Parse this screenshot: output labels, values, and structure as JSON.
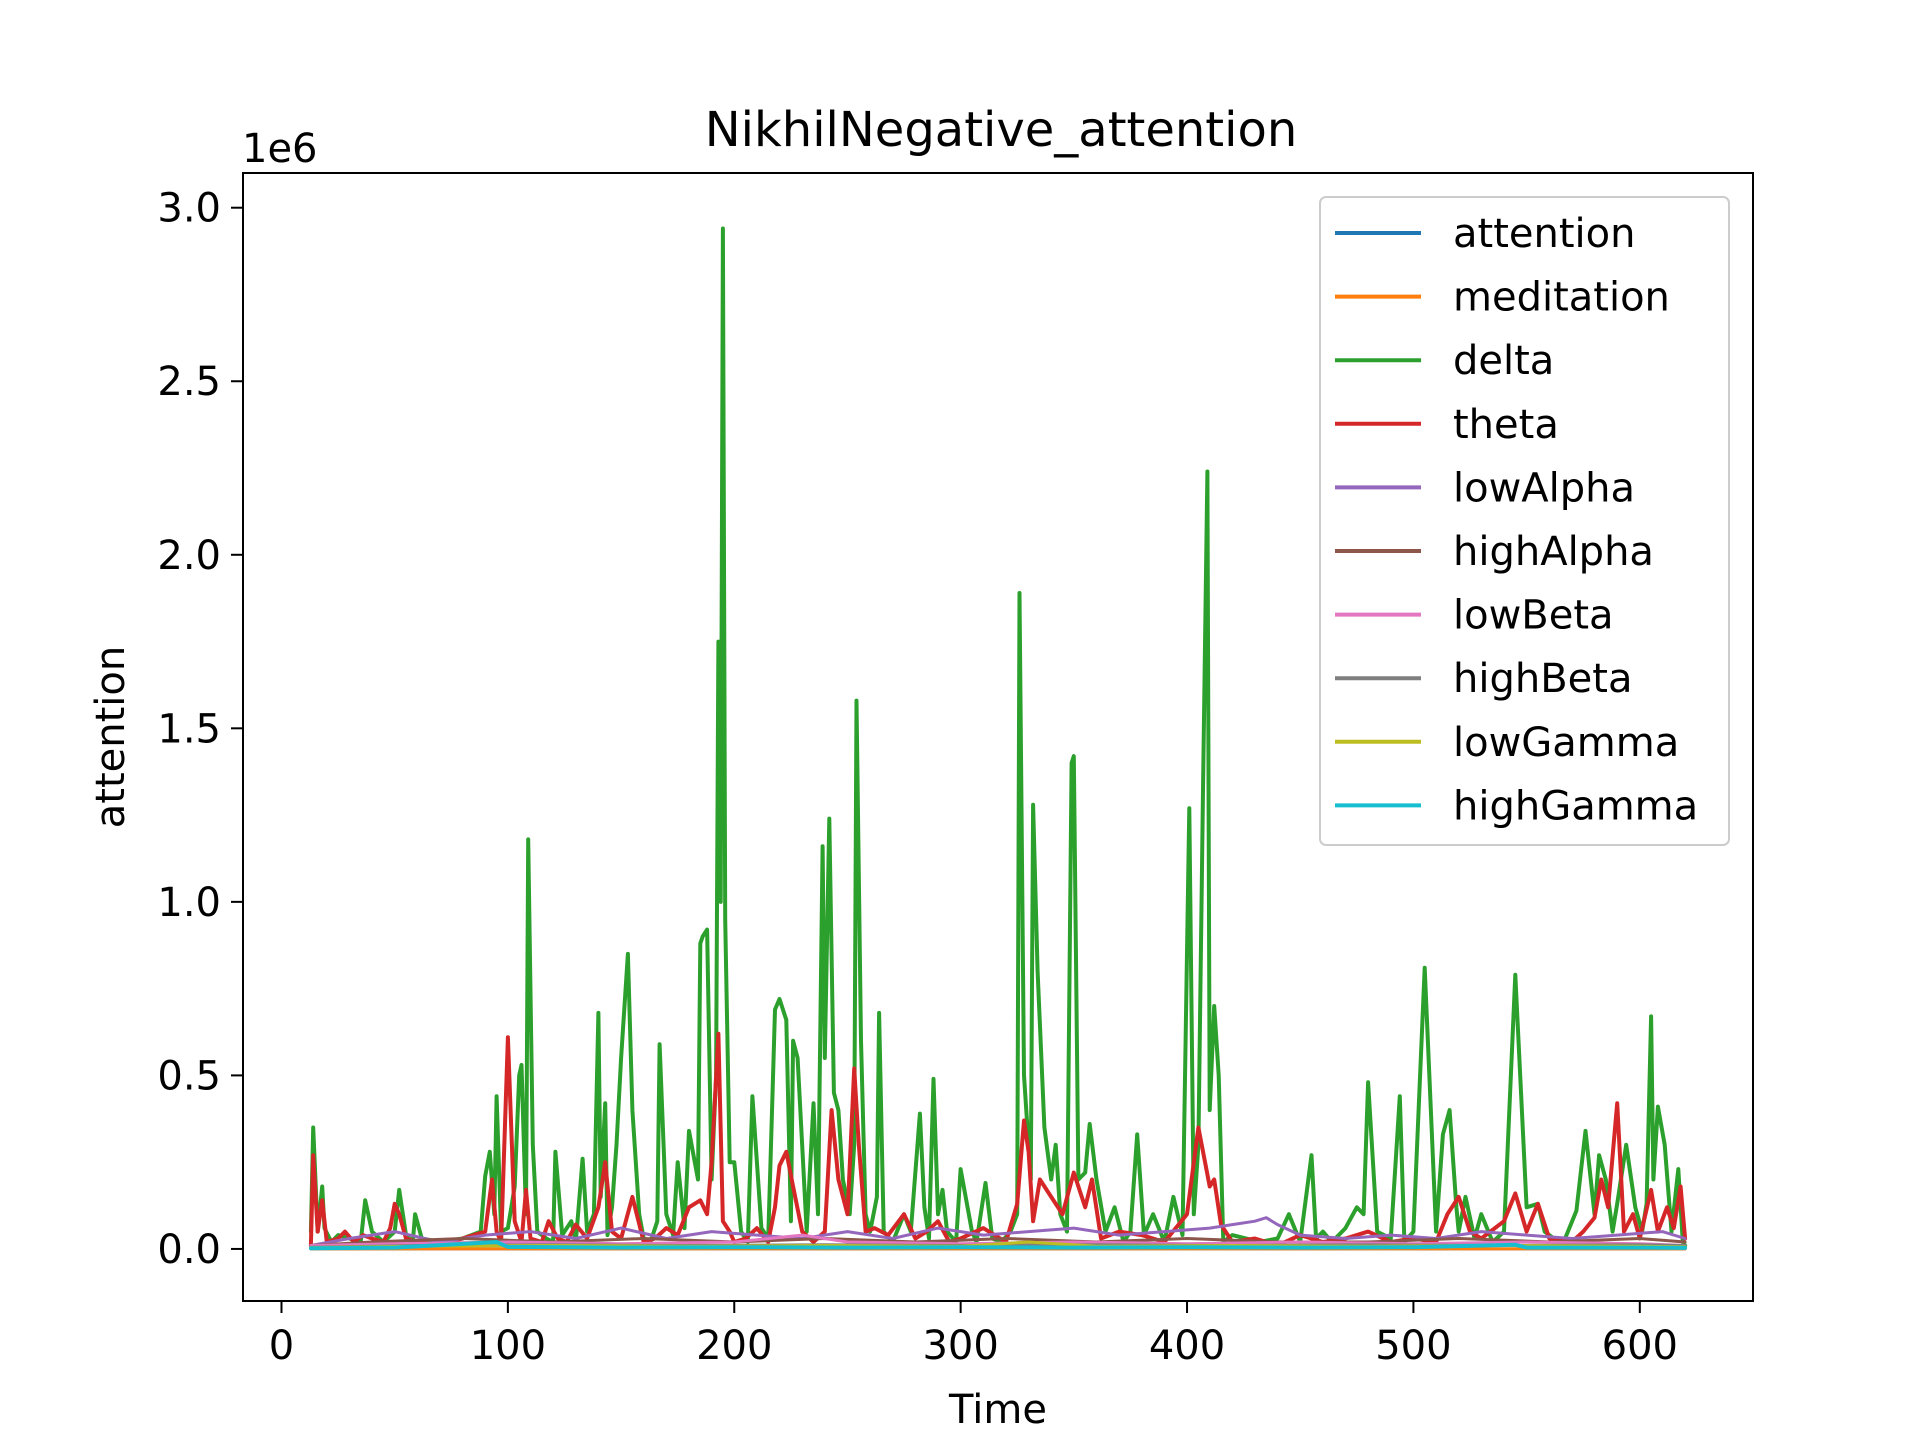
{
  "chart_data": {
    "type": "line",
    "title": "NikhilNegative_attention",
    "xlabel": "Time",
    "ylabel": "attention",
    "y_offset_label": "1e6",
    "xlim": [
      -17,
      650
    ],
    "ylim": [
      -0.15,
      3.1
    ],
    "y_scale_factor": 1000000,
    "xticks": [
      0,
      100,
      200,
      300,
      400,
      500,
      600
    ],
    "yticks": [
      0.0,
      0.5,
      1.0,
      1.5,
      2.0,
      2.5,
      3.0
    ],
    "ytick_labels": [
      "0.0",
      "0.5",
      "1.0",
      "1.5",
      "2.0",
      "2.5",
      "3.0"
    ],
    "legend_position": "upper right",
    "grid": false,
    "series": [
      {
        "name": "attention",
        "color": "#1f77b4",
        "x": [
          13,
          100,
          200,
          300,
          400,
          500,
          620
        ],
        "y": [
          4e-05,
          5e-05,
          6e-05,
          5e-05,
          4e-05,
          5e-05,
          5e-05
        ]
      },
      {
        "name": "meditation",
        "color": "#ff7f0e",
        "x": [
          13,
          100,
          200,
          300,
          400,
          500,
          620
        ],
        "y": [
          5e-05,
          6e-05,
          5e-05,
          6e-05,
          5e-05,
          6e-05,
          5e-05
        ]
      },
      {
        "name": "delta",
        "color": "#2ca02c",
        "x": [
          13,
          14,
          16,
          18,
          19,
          22,
          25,
          30,
          35,
          37,
          40,
          45,
          50,
          52,
          55,
          58,
          59,
          62,
          70,
          80,
          88,
          90,
          92,
          94,
          95,
          97,
          100,
          103,
          105,
          106,
          108,
          109,
          111,
          113,
          117,
          120,
          121,
          124,
          128,
          130,
          133,
          135,
          138,
          140,
          141,
          143,
          144,
          146,
          148,
          150,
          153,
          155,
          158,
          160,
          163,
          166,
          167,
          170,
          173,
          175,
          178,
          180,
          184,
          185,
          186,
          188,
          190,
          192,
          193,
          194,
          195,
          196,
          198,
          200,
          203,
          206,
          208,
          212,
          215,
          216,
          218,
          220,
          223,
          225,
          226,
          228,
          232,
          235,
          237,
          239,
          240,
          242,
          244,
          246,
          248,
          251,
          253,
          254,
          256,
          258,
          260,
          263,
          264,
          266,
          270,
          275,
          278,
          282,
          284,
          286,
          288,
          290,
          292,
          294,
          298,
          300,
          305,
          307,
          311,
          314,
          318,
          322,
          325,
          326,
          328,
          331,
          332,
          334,
          337,
          340,
          342,
          344,
          347,
          349,
          350,
          352,
          355,
          357,
          360,
          364,
          368,
          372,
          375,
          378,
          381,
          385,
          390,
          394,
          398,
          401,
          403,
          405,
          407,
          409,
          410,
          412,
          414,
          416,
          420,
          426,
          432,
          440,
          445,
          450,
          455,
          457,
          460,
          464,
          470,
          475,
          478,
          480,
          484,
          490,
          494,
          496,
          500,
          505,
          510,
          513,
          516,
          519,
          520,
          523,
          527,
          530,
          535,
          540,
          545,
          550,
          555,
          558,
          562,
          567,
          572,
          576,
          580,
          582,
          585,
          588,
          590,
          594,
          598,
          601,
          603,
          605,
          606,
          608,
          611,
          614,
          617,
          619,
          620
        ],
        "y": [
          0.05,
          0.35,
          0.05,
          0.18,
          0.06,
          0.02,
          0.04,
          0.03,
          0.02,
          0.14,
          0.05,
          0.02,
          0.05,
          0.17,
          0.04,
          0.02,
          0.1,
          0.03,
          0.02,
          0.03,
          0.05,
          0.21,
          0.28,
          0.1,
          0.44,
          0.05,
          0.06,
          0.18,
          0.5,
          0.53,
          0.1,
          1.18,
          0.3,
          0.05,
          0.03,
          0.02,
          0.28,
          0.04,
          0.08,
          0.02,
          0.26,
          0.05,
          0.1,
          0.68,
          0.15,
          0.42,
          0.04,
          0.12,
          0.3,
          0.55,
          0.85,
          0.4,
          0.1,
          0.03,
          0.02,
          0.08,
          0.59,
          0.1,
          0.04,
          0.25,
          0.06,
          0.34,
          0.2,
          0.88,
          0.9,
          0.92,
          0.2,
          0.5,
          1.75,
          1.0,
          2.94,
          0.95,
          0.25,
          0.25,
          0.05,
          0.02,
          0.44,
          0.06,
          0.03,
          0.25,
          0.69,
          0.72,
          0.66,
          0.08,
          0.6,
          0.55,
          0.05,
          0.42,
          0.1,
          1.16,
          0.55,
          1.24,
          0.45,
          0.4,
          0.2,
          0.1,
          0.3,
          1.58,
          0.6,
          0.1,
          0.05,
          0.15,
          0.68,
          0.05,
          0.02,
          0.1,
          0.05,
          0.39,
          0.12,
          0.03,
          0.49,
          0.1,
          0.17,
          0.05,
          0.02,
          0.23,
          0.05,
          0.02,
          0.19,
          0.03,
          0.02,
          0.05,
          0.1,
          1.89,
          0.5,
          0.2,
          1.28,
          0.8,
          0.35,
          0.2,
          0.3,
          0.1,
          0.05,
          1.4,
          1.42,
          0.2,
          0.22,
          0.36,
          0.2,
          0.05,
          0.12,
          0.02,
          0.05,
          0.33,
          0.04,
          0.1,
          0.02,
          0.15,
          0.04,
          1.27,
          0.1,
          0.3,
          1.3,
          2.24,
          0.4,
          0.7,
          0.5,
          0.02,
          0.04,
          0.03,
          0.02,
          0.03,
          0.1,
          0.02,
          0.27,
          0.03,
          0.05,
          0.02,
          0.06,
          0.12,
          0.1,
          0.48,
          0.05,
          0.03,
          0.44,
          0.02,
          0.05,
          0.81,
          0.05,
          0.33,
          0.4,
          0.12,
          0.05,
          0.15,
          0.03,
          0.1,
          0.02,
          0.05,
          0.79,
          0.12,
          0.13,
          0.05,
          0.03,
          0.03,
          0.11,
          0.34,
          0.1,
          0.27,
          0.2,
          0.05,
          0.13,
          0.3,
          0.12,
          0.05,
          0.13,
          0.67,
          0.2,
          0.41,
          0.3,
          0.05,
          0.23,
          0.02,
          0.01
        ],
        "width": 4
      },
      {
        "name": "theta",
        "color": "#d62728",
        "x": [
          13,
          14,
          16,
          18,
          20,
          25,
          28,
          32,
          36,
          40,
          45,
          48,
          50,
          52,
          55,
          60,
          70,
          80,
          90,
          93,
          95,
          97,
          100,
          103,
          106,
          108,
          110,
          115,
          118,
          122,
          126,
          130,
          135,
          140,
          143,
          146,
          150,
          155,
          160,
          165,
          170,
          175,
          180,
          185,
          188,
          190,
          193,
          195,
          198,
          200,
          205,
          210,
          215,
          218,
          220,
          223,
          226,
          230,
          235,
          240,
          243,
          246,
          250,
          253,
          255,
          258,
          262,
          268,
          275,
          280,
          285,
          290,
          295,
          300,
          310,
          315,
          320,
          325,
          328,
          330,
          332,
          335,
          340,
          345,
          350,
          355,
          358,
          362,
          370,
          380,
          390,
          400,
          405,
          410,
          412,
          415,
          420,
          430,
          440,
          450,
          460,
          470,
          480,
          490,
          500,
          510,
          515,
          520,
          525,
          530,
          540,
          545,
          550,
          555,
          560,
          570,
          575,
          580,
          583,
          586,
          590,
          593,
          597,
          600,
          605,
          608,
          612,
          615,
          618,
          620
        ],
        "y": [
          0.01,
          0.27,
          0.05,
          0.14,
          0.02,
          0.03,
          0.05,
          0.02,
          0.04,
          0.03,
          0.02,
          0.06,
          0.13,
          0.1,
          0.03,
          0.02,
          0.01,
          0.03,
          0.05,
          0.2,
          0.05,
          0.02,
          0.61,
          0.08,
          0.02,
          0.17,
          0.03,
          0.02,
          0.08,
          0.03,
          0.02,
          0.07,
          0.03,
          0.12,
          0.25,
          0.05,
          0.03,
          0.15,
          0.02,
          0.03,
          0.06,
          0.04,
          0.12,
          0.14,
          0.1,
          0.25,
          0.62,
          0.08,
          0.05,
          0.02,
          0.03,
          0.06,
          0.02,
          0.12,
          0.24,
          0.28,
          0.18,
          0.05,
          0.02,
          0.05,
          0.4,
          0.2,
          0.1,
          0.52,
          0.3,
          0.05,
          0.06,
          0.04,
          0.1,
          0.03,
          0.05,
          0.08,
          0.02,
          0.03,
          0.06,
          0.04,
          0.02,
          0.13,
          0.37,
          0.28,
          0.08,
          0.2,
          0.15,
          0.1,
          0.22,
          0.12,
          0.2,
          0.03,
          0.05,
          0.04,
          0.02,
          0.1,
          0.35,
          0.18,
          0.2,
          0.07,
          0.02,
          0.03,
          0.01,
          0.04,
          0.02,
          0.03,
          0.05,
          0.02,
          0.03,
          0.02,
          0.1,
          0.15,
          0.05,
          0.03,
          0.08,
          0.16,
          0.05,
          0.13,
          0.03,
          0.02,
          0.05,
          0.09,
          0.2,
          0.12,
          0.42,
          0.05,
          0.1,
          0.03,
          0.17,
          0.05,
          0.12,
          0.06,
          0.18,
          0.03
        ],
        "width": 4
      },
      {
        "name": "lowAlpha",
        "color": "#9467bd",
        "x": [
          13,
          30,
          50,
          70,
          90,
          110,
          130,
          150,
          170,
          190,
          210,
          230,
          250,
          270,
          290,
          310,
          330,
          350,
          370,
          390,
          410,
          420,
          430,
          435,
          440,
          450,
          470,
          490,
          510,
          530,
          550,
          570,
          590,
          610,
          620
        ],
        "y": [
          0.01,
          0.03,
          0.05,
          0.02,
          0.04,
          0.05,
          0.03,
          0.06,
          0.03,
          0.05,
          0.04,
          0.03,
          0.05,
          0.03,
          0.06,
          0.04,
          0.05,
          0.06,
          0.04,
          0.05,
          0.06,
          0.07,
          0.08,
          0.09,
          0.07,
          0.04,
          0.03,
          0.04,
          0.03,
          0.05,
          0.04,
          0.03,
          0.04,
          0.05,
          0.03
        ],
        "width": 3
      },
      {
        "name": "highAlpha",
        "color": "#8c564b",
        "x": [
          13,
          40,
          80,
          120,
          160,
          200,
          240,
          280,
          320,
          360,
          400,
          440,
          480,
          520,
          560,
          600,
          620
        ],
        "y": [
          0.01,
          0.02,
          0.03,
          0.02,
          0.03,
          0.02,
          0.03,
          0.02,
          0.03,
          0.02,
          0.03,
          0.02,
          0.02,
          0.03,
          0.02,
          0.03,
          0.02
        ],
        "width": 3
      },
      {
        "name": "lowBeta",
        "color": "#e377c2",
        "x": [
          13,
          50,
          100,
          150,
          200,
          230,
          250,
          300,
          350,
          400,
          450,
          500,
          550,
          600,
          620
        ],
        "y": [
          0.01,
          0.015,
          0.02,
          0.015,
          0.02,
          0.04,
          0.02,
          0.015,
          0.02,
          0.015,
          0.02,
          0.015,
          0.02,
          0.015,
          0.01
        ],
        "width": 3
      },
      {
        "name": "highBeta",
        "color": "#7f7f7f",
        "x": [
          13,
          60,
          120,
          180,
          240,
          300,
          360,
          420,
          480,
          540,
          600,
          620
        ],
        "y": [
          0.005,
          0.01,
          0.012,
          0.01,
          0.012,
          0.01,
          0.012,
          0.01,
          0.012,
          0.01,
          0.012,
          0.01
        ],
        "width": 3
      },
      {
        "name": "lowGamma",
        "color": "#bcbd22",
        "x": [
          13,
          60,
          120,
          180,
          240,
          300,
          330,
          360,
          420,
          480,
          540,
          600,
          620
        ],
        "y": [
          0.004,
          0.008,
          0.01,
          0.008,
          0.01,
          0.008,
          0.02,
          0.008,
          0.01,
          0.008,
          0.01,
          0.008,
          0.006
        ],
        "width": 3
      },
      {
        "name": "highGamma",
        "color": "#17becf",
        "x": [
          13,
          50,
          95,
          100,
          150,
          200,
          250,
          300,
          350,
          400,
          450,
          500,
          545,
          550,
          600,
          620
        ],
        "y": [
          0.002,
          0.004,
          0.02,
          0.006,
          0.004,
          0.005,
          0.004,
          0.005,
          0.004,
          0.005,
          0.004,
          0.005,
          0.012,
          0.004,
          0.004,
          0.003
        ],
        "width": 4
      }
    ]
  }
}
